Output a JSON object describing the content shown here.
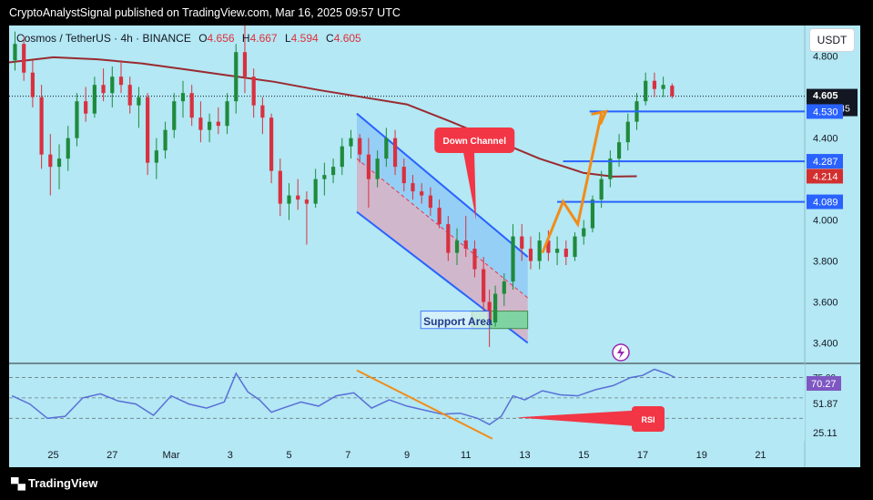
{
  "publisher_line": "CryptoAnalystSignal published on TradingView.com, Mar 16, 2025 09:57 UTC",
  "symbol": {
    "title": "Cosmos / TetherUS · 4h · BINANCE",
    "open_label": "O",
    "open": "4.656",
    "high_label": "H",
    "high": "4.667",
    "low_label": "L",
    "low": "4.594",
    "close_label": "C",
    "close": "4.605"
  },
  "currency_button": "USDT",
  "brand": "TradingView",
  "colors": {
    "background": "#b3e8f4",
    "bull": "#1f8a3b",
    "bear": "#d9303f",
    "ma": "#9a2a30",
    "channel": "#2962ff",
    "arrow": "#f28c18",
    "callout": "#f23645",
    "rsi_line": "#5a6fd6",
    "support_fill": "#7fd3a2",
    "level_blue": "#2962ff",
    "ma_label": "#d32f2f",
    "rsi_label": "#7e57c2"
  },
  "annotations": {
    "down_channel": "Down Channel",
    "support_area": "Support Area",
    "rsi_callout": "RSI"
  },
  "chart_data": [
    {
      "type": "candlestick",
      "title": "Cosmos / TetherUS · 4h · BINANCE",
      "x_ticks": [
        "25",
        "27",
        "Mar",
        "3",
        "5",
        "7",
        "9",
        "11",
        "13",
        "15",
        "17",
        "19",
        "21"
      ],
      "x_tick_days": [
        25,
        27,
        29,
        31,
        33,
        35,
        37,
        39,
        41,
        43,
        45,
        47,
        49
      ],
      "x_range_days": [
        23.5,
        50.5
      ],
      "y_ticks": [
        3.4,
        3.6,
        3.8,
        4.0,
        4.2,
        4.4,
        4.6,
        4.8
      ],
      "y_tick_labels": [
        "3.400",
        "3.600",
        "3.800",
        "4.000",
        "4.200",
        "4.400",
        "4.600",
        "4.800"
      ],
      "ylim": [
        3.3,
        4.95
      ],
      "last_price": 4.605,
      "last_price_label": "4.605",
      "countdown": "02:02:45",
      "levels": [
        {
          "label": "4.530",
          "value": 4.53
        },
        {
          "label": "4.287",
          "value": 4.287
        },
        {
          "label": "4.089",
          "value": 4.089
        }
      ],
      "ma_label": "4.214",
      "ma": [
        {
          "day": 23.5,
          "value": 4.77
        },
        {
          "day": 25,
          "value": 4.795
        },
        {
          "day": 26.5,
          "value": 4.785
        },
        {
          "day": 28,
          "value": 4.765
        },
        {
          "day": 29.5,
          "value": 4.735
        },
        {
          "day": 31,
          "value": 4.705
        },
        {
          "day": 32.5,
          "value": 4.675
        },
        {
          "day": 34,
          "value": 4.635
        },
        {
          "day": 35.5,
          "value": 4.6
        },
        {
          "day": 37,
          "value": 4.565
        },
        {
          "day": 38.5,
          "value": 4.48
        },
        {
          "day": 40,
          "value": 4.39
        },
        {
          "day": 41.5,
          "value": 4.3
        },
        {
          "day": 43,
          "value": 4.23
        },
        {
          "day": 44,
          "value": 4.212
        },
        {
          "day": 44.8,
          "value": 4.214
        }
      ],
      "candles": [
        {
          "d": 23.7,
          "o": 4.78,
          "h": 4.92,
          "l": 4.73,
          "c": 4.86
        },
        {
          "d": 24.0,
          "o": 4.86,
          "h": 4.9,
          "l": 4.68,
          "c": 4.72
        },
        {
          "d": 24.3,
          "o": 4.72,
          "h": 4.78,
          "l": 4.55,
          "c": 4.6
        },
        {
          "d": 24.6,
          "o": 4.6,
          "h": 4.66,
          "l": 4.25,
          "c": 4.32
        },
        {
          "d": 24.9,
          "o": 4.32,
          "h": 4.42,
          "l": 4.12,
          "c": 4.26
        },
        {
          "d": 25.2,
          "o": 4.26,
          "h": 4.37,
          "l": 4.15,
          "c": 4.3
        },
        {
          "d": 25.5,
          "o": 4.3,
          "h": 4.46,
          "l": 4.24,
          "c": 4.4
        },
        {
          "d": 25.8,
          "o": 4.4,
          "h": 4.62,
          "l": 4.36,
          "c": 4.58
        },
        {
          "d": 26.1,
          "o": 4.58,
          "h": 4.65,
          "l": 4.48,
          "c": 4.52
        },
        {
          "d": 26.4,
          "o": 4.52,
          "h": 4.7,
          "l": 4.5,
          "c": 4.66
        },
        {
          "d": 26.7,
          "o": 4.66,
          "h": 4.74,
          "l": 4.58,
          "c": 4.62
        },
        {
          "d": 27.0,
          "o": 4.62,
          "h": 4.75,
          "l": 4.55,
          "c": 4.7
        },
        {
          "d": 27.3,
          "o": 4.7,
          "h": 4.78,
          "l": 4.62,
          "c": 4.66
        },
        {
          "d": 27.6,
          "o": 4.66,
          "h": 4.7,
          "l": 4.52,
          "c": 4.56
        },
        {
          "d": 27.9,
          "o": 4.56,
          "h": 4.65,
          "l": 4.45,
          "c": 4.6
        },
        {
          "d": 28.2,
          "o": 4.6,
          "h": 4.62,
          "l": 4.22,
          "c": 4.28
        },
        {
          "d": 28.5,
          "o": 4.28,
          "h": 4.4,
          "l": 4.2,
          "c": 4.34
        },
        {
          "d": 28.8,
          "o": 4.34,
          "h": 4.48,
          "l": 4.3,
          "c": 4.44
        },
        {
          "d": 29.1,
          "o": 4.44,
          "h": 4.62,
          "l": 4.4,
          "c": 4.58
        },
        {
          "d": 29.4,
          "o": 4.58,
          "h": 4.68,
          "l": 4.5,
          "c": 4.62
        },
        {
          "d": 29.7,
          "o": 4.62,
          "h": 4.66,
          "l": 4.46,
          "c": 4.5
        },
        {
          "d": 30.0,
          "o": 4.5,
          "h": 4.58,
          "l": 4.38,
          "c": 4.44
        },
        {
          "d": 30.3,
          "o": 4.44,
          "h": 4.52,
          "l": 4.38,
          "c": 4.48
        },
        {
          "d": 30.6,
          "o": 4.48,
          "h": 4.55,
          "l": 4.42,
          "c": 4.46
        },
        {
          "d": 30.9,
          "o": 4.46,
          "h": 4.62,
          "l": 4.42,
          "c": 4.58
        },
        {
          "d": 31.2,
          "o": 4.58,
          "h": 4.86,
          "l": 4.52,
          "c": 4.82
        },
        {
          "d": 31.5,
          "o": 4.82,
          "h": 4.95,
          "l": 4.62,
          "c": 4.7
        },
        {
          "d": 31.8,
          "o": 4.7,
          "h": 4.74,
          "l": 4.5,
          "c": 4.56
        },
        {
          "d": 32.1,
          "o": 4.56,
          "h": 4.6,
          "l": 4.42,
          "c": 4.5
        },
        {
          "d": 32.4,
          "o": 4.5,
          "h": 4.52,
          "l": 4.18,
          "c": 4.24
        },
        {
          "d": 32.7,
          "o": 4.24,
          "h": 4.3,
          "l": 4.02,
          "c": 4.08
        },
        {
          "d": 33.0,
          "o": 4.08,
          "h": 4.18,
          "l": 4.0,
          "c": 4.12
        },
        {
          "d": 33.3,
          "o": 4.12,
          "h": 4.2,
          "l": 4.05,
          "c": 4.1
        },
        {
          "d": 33.6,
          "o": 4.1,
          "h": 4.14,
          "l": 3.88,
          "c": 4.08
        },
        {
          "d": 33.9,
          "o": 4.08,
          "h": 4.25,
          "l": 4.06,
          "c": 4.2
        },
        {
          "d": 34.2,
          "o": 4.2,
          "h": 4.28,
          "l": 4.12,
          "c": 4.22
        },
        {
          "d": 34.5,
          "o": 4.22,
          "h": 4.3,
          "l": 4.18,
          "c": 4.26
        },
        {
          "d": 34.8,
          "o": 4.26,
          "h": 4.4,
          "l": 4.22,
          "c": 4.36
        },
        {
          "d": 35.1,
          "o": 4.36,
          "h": 4.44,
          "l": 4.3,
          "c": 4.4
        },
        {
          "d": 35.4,
          "o": 4.4,
          "h": 4.42,
          "l": 4.28,
          "c": 4.32
        },
        {
          "d": 35.7,
          "o": 4.32,
          "h": 4.4,
          "l": 4.06,
          "c": 4.2
        },
        {
          "d": 36.0,
          "o": 4.2,
          "h": 4.34,
          "l": 4.16,
          "c": 4.3
        },
        {
          "d": 36.3,
          "o": 4.3,
          "h": 4.45,
          "l": 4.26,
          "c": 4.4
        },
        {
          "d": 36.6,
          "o": 4.4,
          "h": 4.44,
          "l": 4.22,
          "c": 4.26
        },
        {
          "d": 36.9,
          "o": 4.26,
          "h": 4.3,
          "l": 4.14,
          "c": 4.18
        },
        {
          "d": 37.2,
          "o": 4.18,
          "h": 4.22,
          "l": 4.1,
          "c": 4.14
        },
        {
          "d": 37.5,
          "o": 4.14,
          "h": 4.18,
          "l": 4.08,
          "c": 4.12
        },
        {
          "d": 37.8,
          "o": 4.12,
          "h": 4.16,
          "l": 4.02,
          "c": 4.06
        },
        {
          "d": 38.1,
          "o": 4.06,
          "h": 4.1,
          "l": 3.96,
          "c": 3.98
        },
        {
          "d": 38.4,
          "o": 3.98,
          "h": 4.02,
          "l": 3.8,
          "c": 3.84
        },
        {
          "d": 38.7,
          "o": 3.84,
          "h": 3.96,
          "l": 3.78,
          "c": 3.9
        },
        {
          "d": 39.0,
          "o": 3.9,
          "h": 4.02,
          "l": 3.82,
          "c": 3.86
        },
        {
          "d": 39.3,
          "o": 3.86,
          "h": 3.9,
          "l": 3.72,
          "c": 3.76
        },
        {
          "d": 39.6,
          "o": 3.76,
          "h": 3.82,
          "l": 3.55,
          "c": 3.6
        },
        {
          "d": 39.8,
          "o": 3.6,
          "h": 3.66,
          "l": 3.38,
          "c": 3.5
        },
        {
          "d": 40.0,
          "o": 3.5,
          "h": 3.68,
          "l": 3.48,
          "c": 3.64
        },
        {
          "d": 40.3,
          "o": 3.64,
          "h": 3.74,
          "l": 3.58,
          "c": 3.7
        },
        {
          "d": 40.6,
          "o": 3.7,
          "h": 3.98,
          "l": 3.66,
          "c": 3.92
        },
        {
          "d": 40.9,
          "o": 3.92,
          "h": 3.98,
          "l": 3.8,
          "c": 3.86
        },
        {
          "d": 41.2,
          "o": 3.86,
          "h": 3.92,
          "l": 3.76,
          "c": 3.8
        },
        {
          "d": 41.5,
          "o": 3.8,
          "h": 3.94,
          "l": 3.76,
          "c": 3.9
        },
        {
          "d": 41.8,
          "o": 3.9,
          "h": 3.95,
          "l": 3.8,
          "c": 3.84
        },
        {
          "d": 42.1,
          "o": 3.84,
          "h": 3.92,
          "l": 3.78,
          "c": 3.86
        },
        {
          "d": 42.4,
          "o": 3.86,
          "h": 3.9,
          "l": 3.78,
          "c": 3.82
        },
        {
          "d": 42.7,
          "o": 3.82,
          "h": 3.94,
          "l": 3.8,
          "c": 3.92
        },
        {
          "d": 43.0,
          "o": 3.92,
          "h": 4.0,
          "l": 3.88,
          "c": 3.96
        },
        {
          "d": 43.3,
          "o": 3.96,
          "h": 4.12,
          "l": 3.94,
          "c": 4.1
        },
        {
          "d": 43.6,
          "o": 4.1,
          "h": 4.24,
          "l": 4.06,
          "c": 4.2
        },
        {
          "d": 43.9,
          "o": 4.2,
          "h": 4.34,
          "l": 4.16,
          "c": 4.3
        },
        {
          "d": 44.2,
          "o": 4.3,
          "h": 4.42,
          "l": 4.26,
          "c": 4.38
        },
        {
          "d": 44.5,
          "o": 4.38,
          "h": 4.52,
          "l": 4.34,
          "c": 4.48
        },
        {
          "d": 44.8,
          "o": 4.48,
          "h": 4.62,
          "l": 4.44,
          "c": 4.58
        },
        {
          "d": 45.1,
          "o": 4.58,
          "h": 4.72,
          "l": 4.56,
          "c": 4.68
        },
        {
          "d": 45.4,
          "o": 4.68,
          "h": 4.72,
          "l": 4.6,
          "c": 4.64
        },
        {
          "d": 45.7,
          "o": 4.64,
          "h": 4.7,
          "l": 4.6,
          "c": 4.66
        },
        {
          "d": 46.0,
          "o": 4.656,
          "h": 4.667,
          "l": 4.594,
          "c": 4.605
        }
      ]
    },
    {
      "type": "line",
      "title": "RSI",
      "y_ticks": [
        25.11,
        51.87,
        70.27
      ],
      "y_tick_labels": [
        "25.11",
        "51.87",
        "70.27"
      ],
      "top_label": "75.00",
      "ylim": [
        8,
        82
      ],
      "dashed_levels": [
        70,
        50,
        30
      ],
      "x": [
        23.6,
        24.2,
        24.8,
        25.4,
        26.0,
        26.6,
        27.2,
        27.8,
        28.4,
        29.0,
        29.6,
        30.2,
        30.8,
        31.2,
        31.6,
        32.0,
        32.4,
        32.8,
        33.4,
        34.0,
        34.6,
        35.2,
        35.8,
        36.4,
        37.0,
        37.6,
        38.2,
        38.8,
        39.4,
        39.8,
        40.2,
        40.6,
        41.0,
        41.6,
        42.2,
        42.8,
        43.4,
        44.0,
        44.6,
        45.0,
        45.4,
        45.8,
        46.1
      ],
      "y": [
        52,
        44,
        30,
        32,
        50,
        54,
        47,
        44,
        33,
        52,
        44,
        40,
        46,
        74,
        56,
        48,
        36,
        40,
        46,
        42,
        52,
        55,
        40,
        48,
        42,
        38,
        34,
        35,
        30,
        24,
        32,
        52,
        48,
        57,
        53,
        52,
        58,
        62,
        70,
        72,
        78,
        74,
        70
      ]
    }
  ]
}
